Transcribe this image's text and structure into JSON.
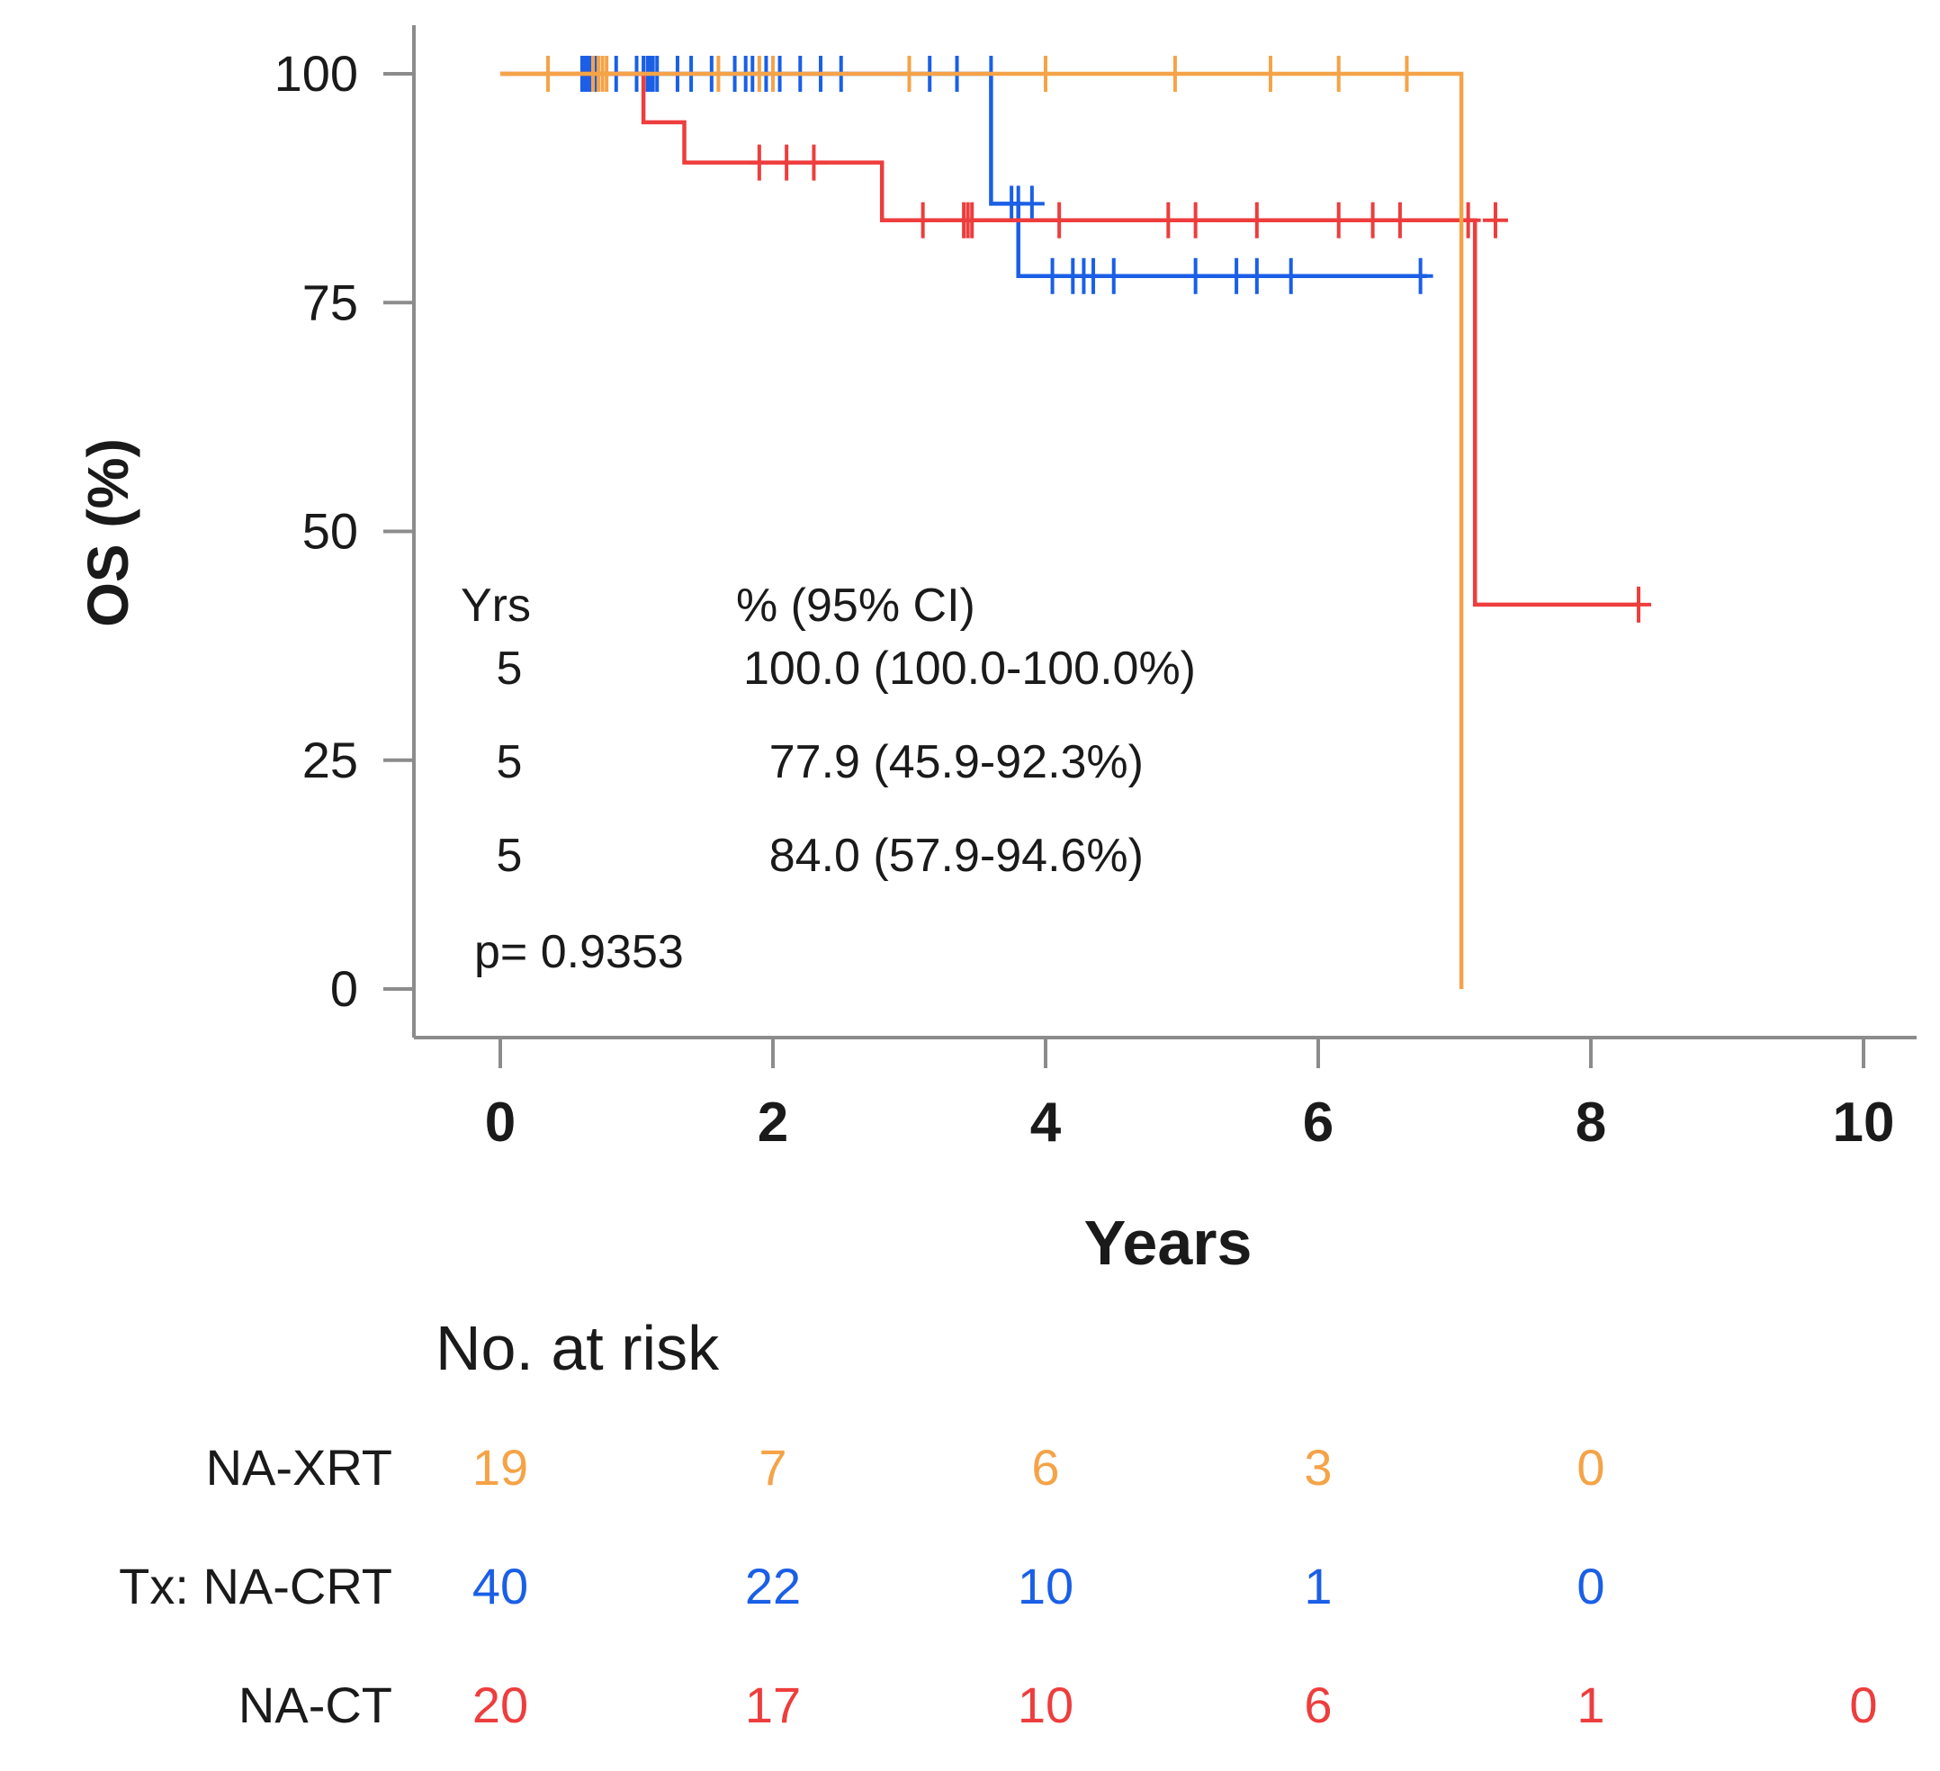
{
  "chart_data": {
    "type": "line",
    "subtype": "kaplan-meier",
    "ylabel": "OS (%)",
    "xlabel": "Years",
    "xlim": [
      0,
      10
    ],
    "ylim": [
      0,
      100
    ],
    "x_ticks": [
      "0",
      "2",
      "4",
      "6",
      "8",
      "10"
    ],
    "y_ticks": [
      "0",
      "25",
      "50",
      "75",
      "100"
    ],
    "grid": false,
    "series": [
      {
        "name": "NA-XRT",
        "color": "#f5a347",
        "steps": [
          [
            0,
            100
          ],
          [
            7.05,
            100
          ],
          [
            7.05,
            0
          ]
        ],
        "censors": [
          [
            0.35,
            100
          ],
          [
            0.68,
            100
          ],
          [
            0.72,
            100
          ],
          [
            0.75,
            100
          ],
          [
            0.78,
            100
          ],
          [
            1.6,
            100
          ],
          [
            1.9,
            100
          ],
          [
            2.0,
            100
          ],
          [
            3.0,
            100
          ],
          [
            4.0,
            100
          ],
          [
            4.95,
            100
          ],
          [
            5.65,
            100
          ],
          [
            6.15,
            100
          ],
          [
            6.65,
            100
          ]
        ]
      },
      {
        "name": "NA-CRT",
        "color": "#1a5fe6",
        "steps": [
          [
            0.6,
            100
          ],
          [
            3.6,
            100
          ],
          [
            3.6,
            85.8
          ],
          [
            3.8,
            85.8
          ],
          [
            3.8,
            77.9
          ],
          [
            6.8,
            77.9
          ]
        ],
        "censors": [
          [
            0.6,
            100
          ],
          [
            0.62,
            100
          ],
          [
            0.64,
            100
          ],
          [
            0.66,
            100
          ],
          [
            0.7,
            100
          ],
          [
            0.85,
            100
          ],
          [
            1.0,
            100
          ],
          [
            1.05,
            100
          ],
          [
            1.08,
            100
          ],
          [
            1.1,
            100
          ],
          [
            1.12,
            100
          ],
          [
            1.15,
            100
          ],
          [
            1.3,
            100
          ],
          [
            1.4,
            100
          ],
          [
            1.55,
            100
          ],
          [
            1.72,
            100
          ],
          [
            1.8,
            100
          ],
          [
            1.85,
            100
          ],
          [
            1.95,
            100
          ],
          [
            2.05,
            100
          ],
          [
            2.2,
            100
          ],
          [
            2.35,
            100
          ],
          [
            2.5,
            100
          ],
          [
            3.15,
            100
          ],
          [
            3.35,
            100
          ],
          [
            3.6,
            100
          ],
          [
            3.75,
            85.8
          ],
          [
            3.8,
            85.8
          ],
          [
            3.9,
            85.8
          ],
          [
            4.05,
            77.9
          ],
          [
            4.2,
            77.9
          ],
          [
            4.28,
            77.9
          ],
          [
            4.35,
            77.9
          ],
          [
            4.5,
            77.9
          ],
          [
            5.1,
            77.9
          ],
          [
            5.4,
            77.9
          ],
          [
            5.55,
            77.9
          ],
          [
            5.8,
            77.9
          ],
          [
            6.75,
            77.9
          ]
        ]
      },
      {
        "name": "NA-CT",
        "color": "#ee3d3d",
        "steps": [
          [
            0,
            100
          ],
          [
            1.05,
            100
          ],
          [
            1.05,
            94.7
          ],
          [
            1.35,
            94.7
          ],
          [
            1.35,
            90.3
          ],
          [
            2.8,
            90.3
          ],
          [
            2.8,
            84.0
          ],
          [
            7.15,
            84.0
          ],
          [
            7.15,
            42.0
          ],
          [
            8.35,
            42.0
          ]
        ],
        "censors": [
          [
            1.9,
            90.3
          ],
          [
            2.1,
            90.3
          ],
          [
            2.3,
            90.3
          ],
          [
            3.1,
            84.0
          ],
          [
            3.4,
            84.0
          ],
          [
            3.43,
            84.0
          ],
          [
            3.46,
            84.0
          ],
          [
            4.1,
            84.0
          ],
          [
            4.9,
            84.0
          ],
          [
            5.1,
            84.0
          ],
          [
            5.55,
            84.0
          ],
          [
            6.15,
            84.0
          ],
          [
            6.4,
            84.0
          ],
          [
            6.6,
            84.0
          ],
          [
            7.1,
            84.0
          ],
          [
            7.3,
            84.0
          ],
          [
            8.35,
            42.0
          ]
        ]
      }
    ],
    "annotation": {
      "header_yrs": "Yrs",
      "header_pct": "%  (95% CI)",
      "rows": [
        {
          "yrs": "5",
          "value": "100.0 (100.0-100.0%)"
        },
        {
          "yrs": "5",
          "value": "77.9 (45.9-92.3%)"
        },
        {
          "yrs": "5",
          "value": "84.0 (57.9-94.6%)"
        }
      ],
      "pvalue": "p= 0.9353"
    },
    "risk_table": {
      "title": "No. at risk",
      "rows": [
        {
          "label": "NA-XRT",
          "color": "#f5a347",
          "values": [
            "19",
            "7",
            "6",
            "3",
            "0"
          ]
        },
        {
          "label": "Tx: NA-CRT",
          "color": "#1a5fe6",
          "values": [
            "40",
            "22",
            "10",
            "1",
            "0"
          ]
        },
        {
          "label": "NA-CT",
          "color": "#ee3d3d",
          "values": [
            "20",
            "17",
            "10",
            "6",
            "1",
            "0"
          ]
        }
      ]
    }
  }
}
